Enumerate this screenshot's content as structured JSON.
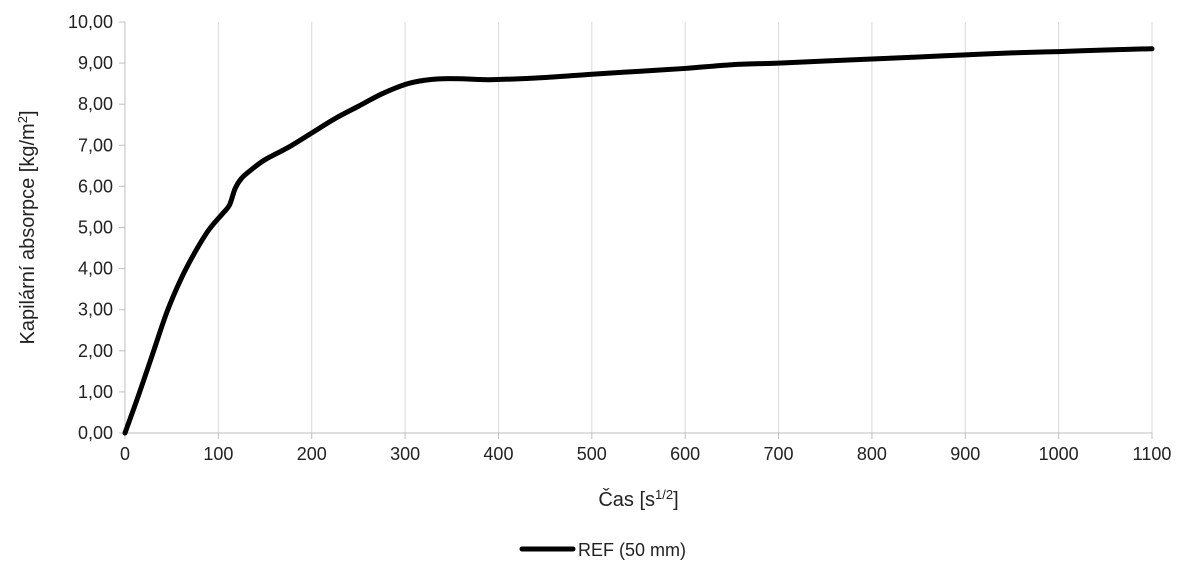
{
  "chart_data": {
    "type": "line",
    "title": "",
    "xlabel": "Čas [s",
    "xlabel_sup": "1/2",
    "xlabel_suffix": "]",
    "ylabel": "Kapilární absorpce [kg/m",
    "ylabel_sup": "2",
    "ylabel_suffix": "]",
    "xlim": [
      0,
      1100
    ],
    "ylim": [
      0,
      10
    ],
    "x_ticks": [
      0,
      100,
      200,
      300,
      400,
      500,
      600,
      700,
      800,
      900,
      1000,
      1100
    ],
    "x_tick_labels": [
      "0",
      "100",
      "200",
      "300",
      "400",
      "500",
      "600",
      "700",
      "800",
      "900",
      "1000",
      "1100"
    ],
    "y_ticks": [
      0,
      1,
      2,
      3,
      4,
      5,
      6,
      7,
      8,
      9,
      10
    ],
    "y_tick_labels": [
      "0,00",
      "1,00",
      "2,00",
      "3,00",
      "4,00",
      "5,00",
      "6,00",
      "7,00",
      "8,00",
      "9,00",
      "10,00"
    ],
    "grid": "vertical",
    "legend_position": "bottom-center",
    "series": [
      {
        "name": "REF (50 mm)",
        "color": "#000000",
        "x": [
          0,
          15,
          30,
          45,
          60,
          75,
          90,
          105,
          112,
          118,
          125,
          135,
          150,
          175,
          200,
          225,
          250,
          275,
          300,
          320,
          340,
          360,
          380,
          400,
          450,
          500,
          550,
          600,
          650,
          700,
          750,
          800,
          850,
          900,
          950,
          1000,
          1050,
          1100
        ],
        "y": [
          0,
          0.95,
          1.95,
          2.95,
          3.75,
          4.4,
          4.95,
          5.35,
          5.55,
          5.95,
          6.2,
          6.4,
          6.65,
          6.95,
          7.3,
          7.65,
          7.95,
          8.25,
          8.48,
          8.58,
          8.62,
          8.62,
          8.6,
          8.6,
          8.65,
          8.73,
          8.8,
          8.87,
          8.96,
          9.0,
          9.05,
          9.1,
          9.15,
          9.2,
          9.25,
          9.28,
          9.32,
          9.35
        ]
      }
    ]
  }
}
